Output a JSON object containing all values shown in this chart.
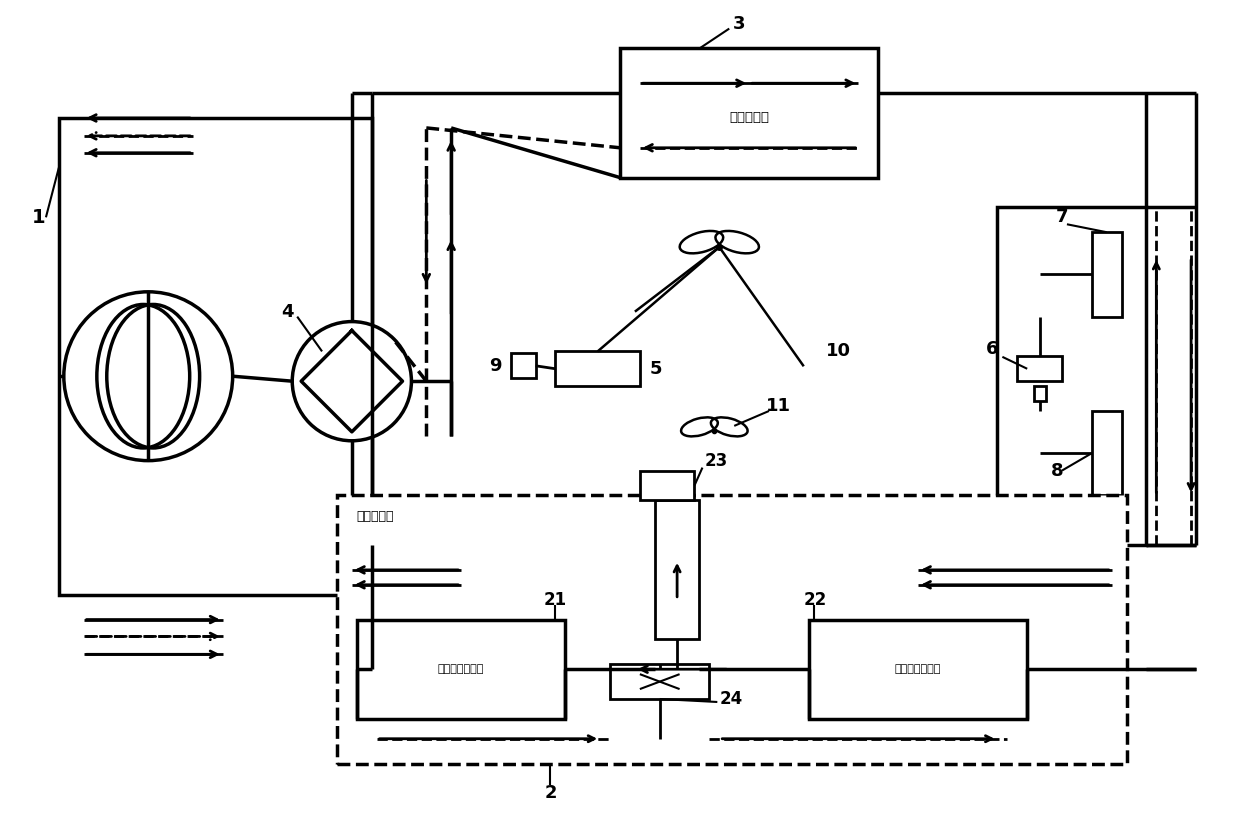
{
  "bg_color": "#ffffff",
  "lc": "#000000",
  "lw": 2.0,
  "lw2": 2.5,
  "fig_w": 12.4,
  "fig_h": 8.16,
  "outdoor_hx_text": "室外换热器",
  "indoor_hx_label": "室内换热器",
  "first_indoor_hx": "第一室内换热器",
  "second_indoor_hx": "第二室内换热器"
}
